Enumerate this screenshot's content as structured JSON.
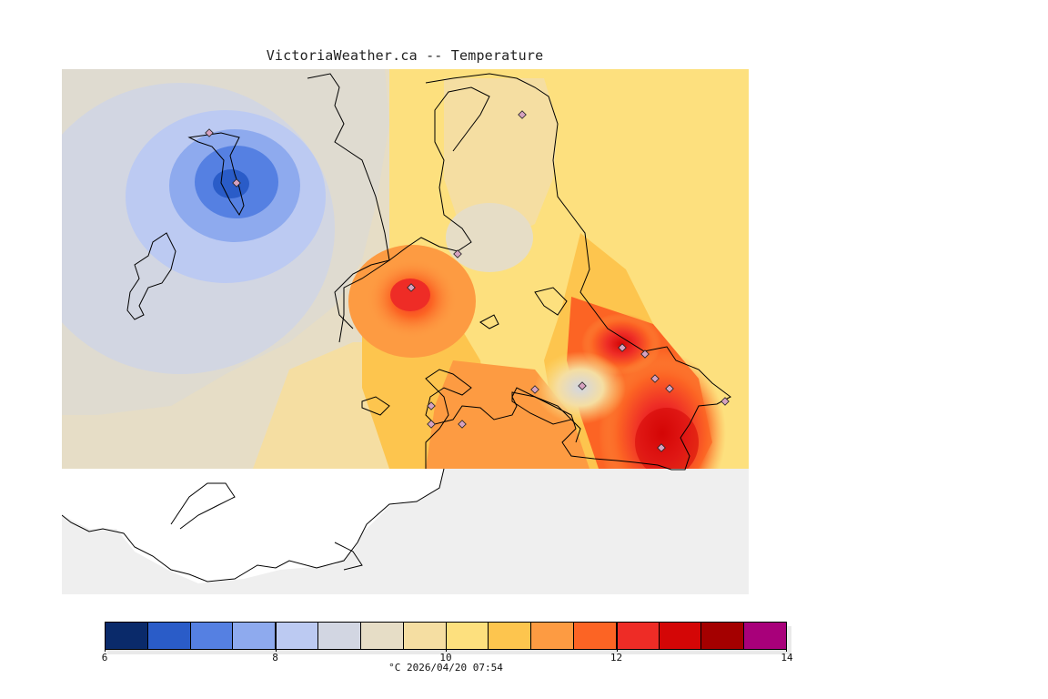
{
  "title": "VictoriaWeather.ca -- Temperature",
  "legend": {
    "unit_caption": "°C  2026/04/20 07:54",
    "ticks": [
      "6",
      "8",
      "10",
      "12",
      "14"
    ],
    "range": [
      6,
      14
    ],
    "colors": [
      "#0a2a6a",
      "#2a5cc8",
      "#5580e2",
      "#8eaaee",
      "#bccaf2",
      "#d2d6e2",
      "#e6ddc6",
      "#f5dea2",
      "#fde07e",
      "#fdc54e",
      "#fd9b42",
      "#fc6424",
      "#ee2c26",
      "#d40606",
      "#a40000",
      "#a8007a"
    ]
  },
  "colors": {
    "sea": "#efefef",
    "no_data_land": "#ffffff",
    "station_marker": "#d6a2c0",
    "coastline": "#000000"
  }
}
